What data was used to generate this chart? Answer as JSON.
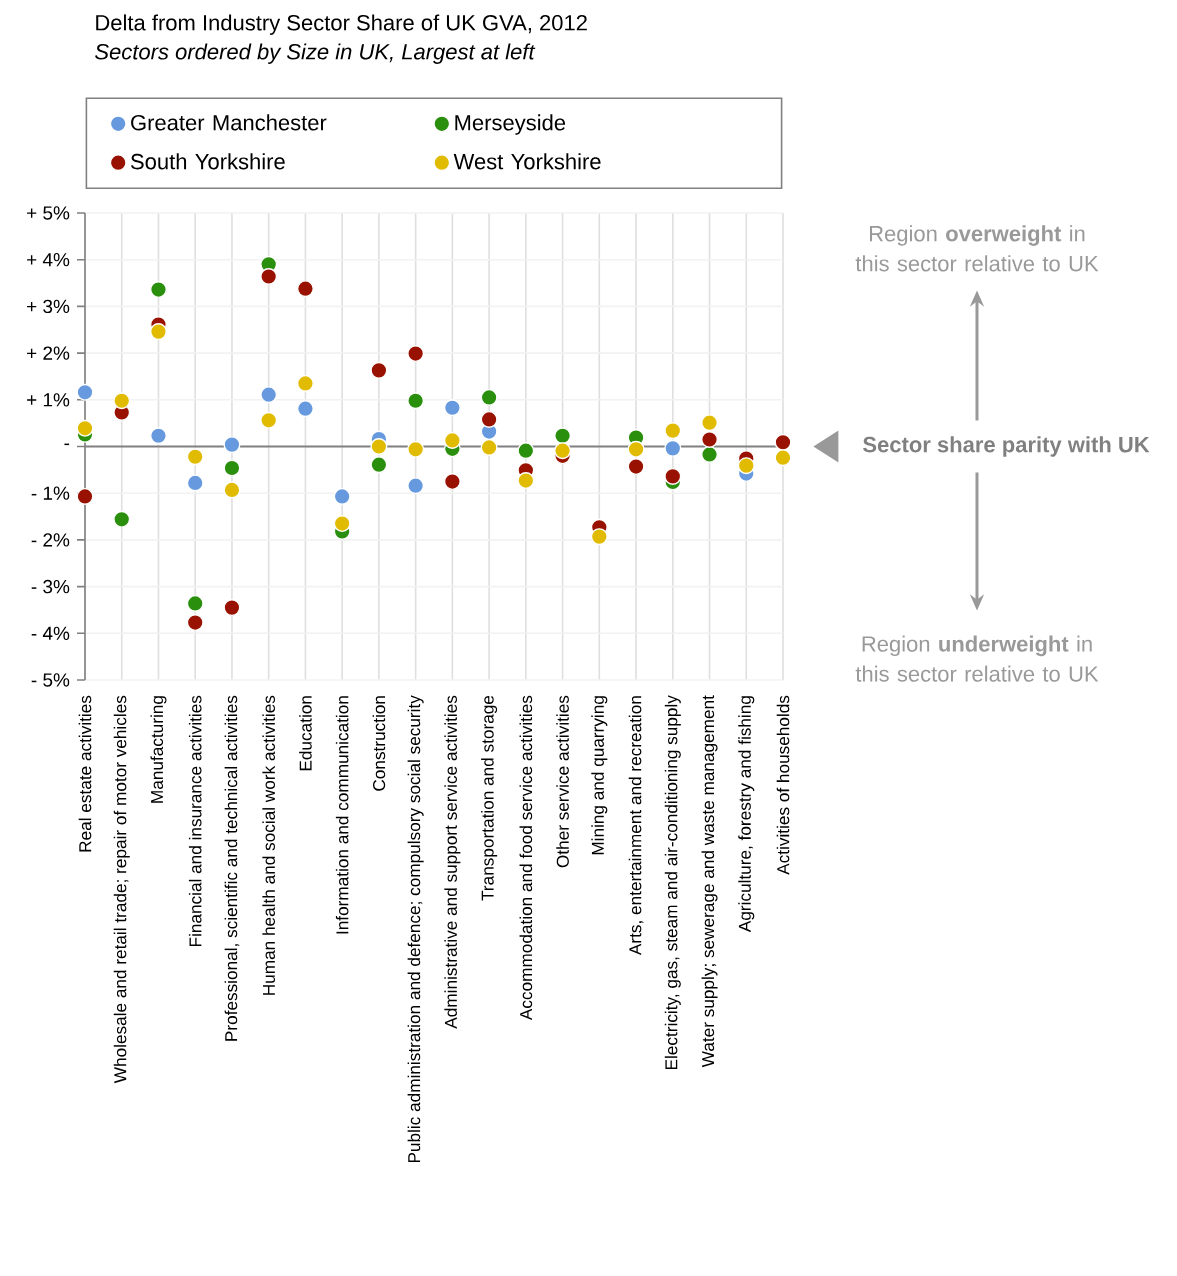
{
  "chart_data": {
    "type": "scatter",
    "title": "Delta from Industry Sector Share of UK GVA, 2012",
    "subtitle": "Sectors ordered by Size in UK, Largest at left",
    "categories": [
      "Real estate activities",
      "Wholesale and retail trade; repair of motor vehicles",
      "Manufacturing",
      "Financial and insurance activities",
      "Professional, scientific and technical activities",
      "Human health and social work activities",
      "Education",
      "Information and communication",
      "Construction",
      "Public administration and defence; compulsory social security",
      "Administrative and support service activities",
      "Transportation and storage",
      "Accommodation and food service activities",
      "Other service activities",
      "Mining and quarrying",
      "Arts, entertainment and recreation",
      "Electricity, gas, steam and air-conditioning supply",
      "Water supply; sewerage and waste management",
      "Agriculture, forestry and fishing",
      "Activities of households"
    ],
    "series": [
      {
        "name": "Greater Manchester",
        "color": "#6699dd",
        "values": [
          1.16,
          null,
          0.23,
          -0.78,
          0.04,
          1.11,
          0.81,
          -1.07,
          0.16,
          -0.84,
          0.83,
          0.32,
          null,
          null,
          null,
          null,
          -0.04,
          null,
          -0.58,
          null
        ]
      },
      {
        "name": "Merseyside",
        "color": "#2a8f0c",
        "values": [
          0.26,
          -1.56,
          3.36,
          -3.36,
          -0.46,
          3.9,
          null,
          -1.82,
          -0.39,
          0.98,
          -0.05,
          1.05,
          -0.09,
          0.23,
          null,
          0.19,
          -0.76,
          -0.17,
          null,
          null
        ]
      },
      {
        "name": "South Yorkshire",
        "color": "#991100",
        "values": [
          -1.07,
          0.73,
          2.61,
          -3.77,
          -3.45,
          3.64,
          3.38,
          null,
          1.63,
          1.99,
          -0.75,
          0.58,
          -0.51,
          -0.2,
          -1.73,
          -0.43,
          -0.64,
          0.15,
          -0.26,
          0.09
        ]
      },
      {
        "name": "West Yorkshire",
        "color": "#e0bb00",
        "values": [
          0.39,
          0.98,
          2.46,
          -0.22,
          -0.93,
          0.56,
          1.35,
          -1.65,
          0,
          -0.06,
          0.13,
          -0.02,
          -0.73,
          -0.09,
          -1.93,
          -0.06,
          0.34,
          0.51,
          -0.41,
          -0.24
        ]
      }
    ],
    "ylim": [
      -5,
      5
    ],
    "yticks": [
      {
        "value": -5,
        "label": "- 5%"
      },
      {
        "value": -4,
        "label": "- 4%"
      },
      {
        "value": -3,
        "label": "- 3%"
      },
      {
        "value": -2,
        "label": "- 2%"
      },
      {
        "value": -1,
        "label": "- 1%"
      },
      {
        "value": 0,
        "label": "-"
      },
      {
        "value": 1,
        "label": "+ 1%"
      },
      {
        "value": 2,
        "label": "+ 2%"
      },
      {
        "value": 3,
        "label": "+ 3%"
      },
      {
        "value": 4,
        "label": "+ 4%"
      },
      {
        "value": 5,
        "label": "+ 5%"
      }
    ],
    "grid": true,
    "legend": "top",
    "marker": "circle",
    "ref_lines": [
      {
        "axis": "y",
        "value": 0
      }
    ],
    "annotations": [
      "Region **overweight** in this sector relative to UK",
      "Sector share parity with UK",
      "Region **underweight** in this sector relative to UK"
    ]
  }
}
